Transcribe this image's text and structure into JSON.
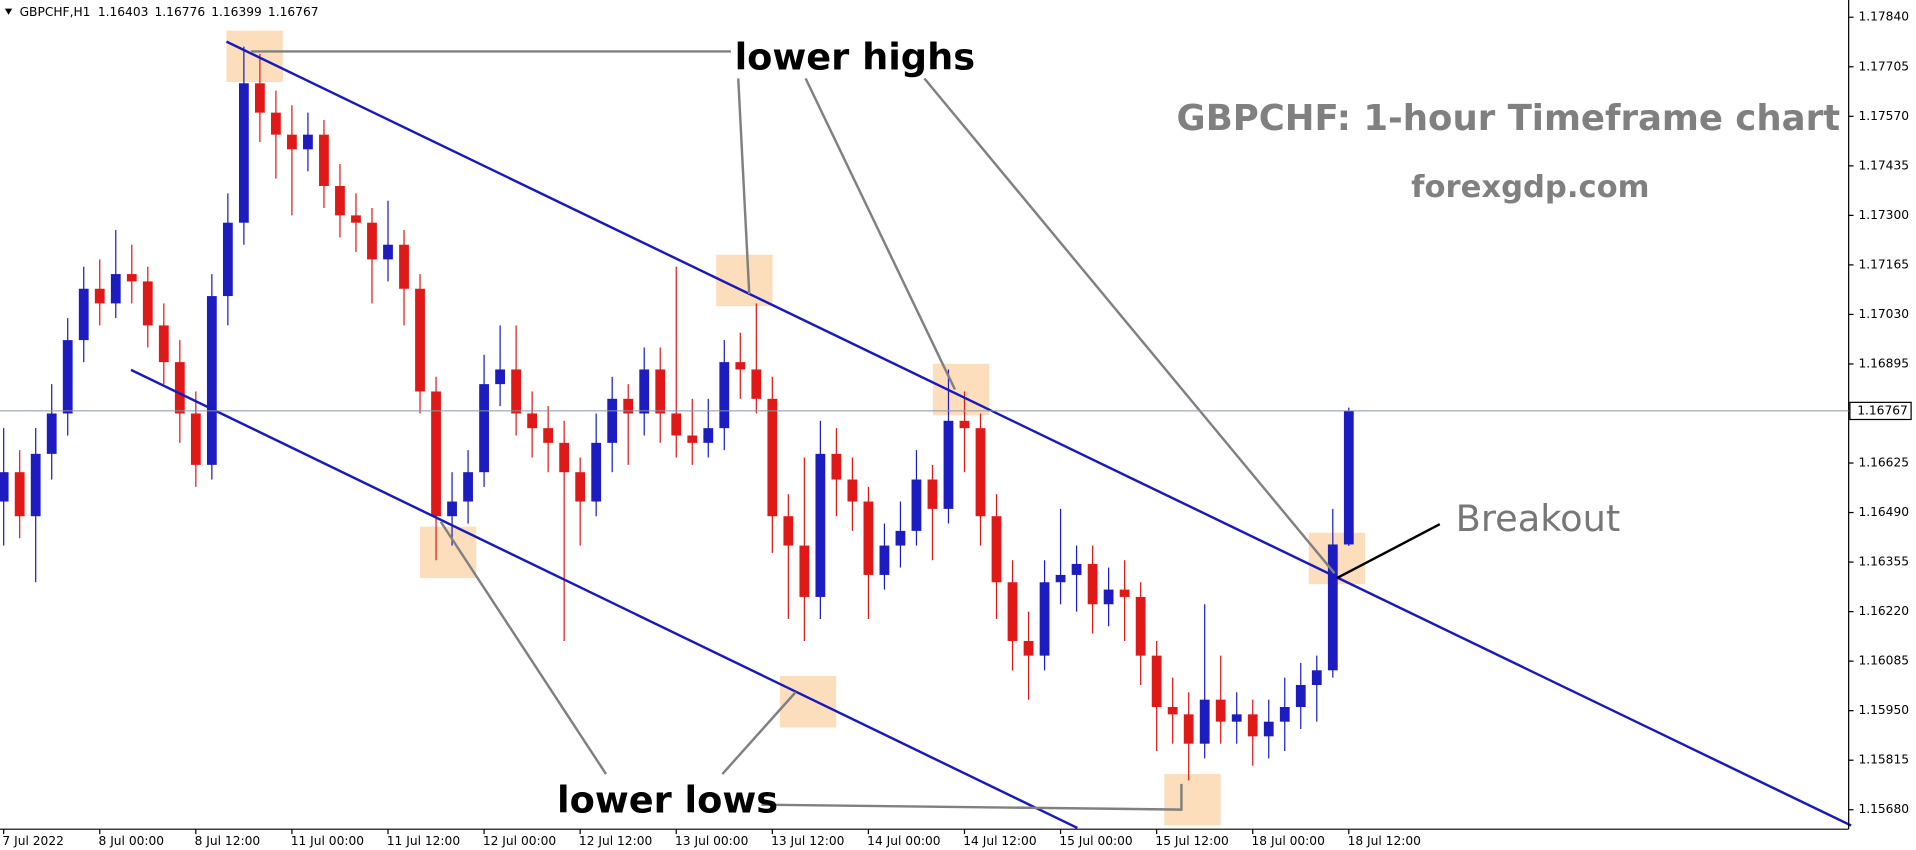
{
  "chart_data": {
    "type": "candlestick",
    "header": {
      "symbol": "GBPCHF,H1",
      "ohlc": [
        "1.16403",
        "1.16776",
        "1.16399",
        "1.16767"
      ]
    },
    "title": "GBPCHF: 1-hour Timeframe chart",
    "subtitle": "forexgdp.com",
    "annotations": {
      "highs": "lower highs",
      "lows": "lower lows",
      "breakout": "Breakout"
    },
    "bull_color": "#1c1cc0",
    "bear_color": "#e01818",
    "ylim": [
      1.15627,
      1.17887
    ],
    "yticks": [
      {
        "value": 1.1784,
        "label": "1.17840"
      },
      {
        "value": 1.17705,
        "label": "1.17705"
      },
      {
        "value": 1.1757,
        "label": "1.17570"
      },
      {
        "value": 1.17435,
        "label": "1.17435"
      },
      {
        "value": 1.173,
        "label": "1.17300"
      },
      {
        "value": 1.17165,
        "label": "1.17165"
      },
      {
        "value": 1.1703,
        "label": "1.17030"
      },
      {
        "value": 1.16895,
        "label": "1.16895"
      },
      {
        "value": 1.16625,
        "label": "1.16625"
      },
      {
        "value": 1.1649,
        "label": "1.16490"
      },
      {
        "value": 1.16355,
        "label": "1.16355"
      },
      {
        "value": 1.1622,
        "label": "1.16220"
      },
      {
        "value": 1.16085,
        "label": "1.16085"
      },
      {
        "value": 1.1595,
        "label": "1.15950"
      },
      {
        "value": 1.15815,
        "label": "1.15815"
      },
      {
        "value": 1.1568,
        "label": "1.15680"
      }
    ],
    "current_price": {
      "value": 1.16767,
      "label": "1.16767"
    },
    "categories": [
      "7 Jul 2022",
      null,
      null,
      null,
      null,
      null,
      "8 Jul 00:00",
      null,
      null,
      null,
      null,
      null,
      "8 Jul 12:00",
      null,
      null,
      null,
      null,
      null,
      "11 Jul 00:00",
      null,
      null,
      null,
      null,
      null,
      "11 Jul 12:00",
      null,
      null,
      null,
      null,
      null,
      "12 Jul 00:00",
      null,
      null,
      null,
      null,
      null,
      "12 Jul 12:00",
      null,
      null,
      null,
      null,
      null,
      "13 Jul 00:00",
      null,
      null,
      null,
      null,
      null,
      "13 Jul 12:00",
      null,
      null,
      null,
      null,
      null,
      "14 Jul 00:00",
      null,
      null,
      null,
      null,
      null,
      "14 Jul 12:00",
      null,
      null,
      null,
      null,
      null,
      "15 Jul 00:00",
      null,
      null,
      null,
      null,
      null,
      "15 Jul 12:00",
      null,
      null,
      null,
      null,
      null,
      "18 Jul 00:00",
      null,
      null,
      null,
      null,
      null,
      "18 Jul 12:00"
    ],
    "candles": [
      [
        1.1652,
        1.1672,
        1.164,
        1.166
      ],
      [
        1.166,
        1.1666,
        1.1642,
        1.1648
      ],
      [
        1.1648,
        1.1672,
        1.163,
        1.1665
      ],
      [
        1.1665,
        1.1684,
        1.1658,
        1.1676
      ],
      [
        1.1676,
        1.1702,
        1.167,
        1.1696
      ],
      [
        1.1696,
        1.1716,
        1.169,
        1.171
      ],
      [
        1.171,
        1.1718,
        1.17,
        1.1706
      ],
      [
        1.1706,
        1.1726,
        1.1702,
        1.1714
      ],
      [
        1.1714,
        1.1722,
        1.1706,
        1.1712
      ],
      [
        1.1712,
        1.1716,
        1.1694,
        1.17
      ],
      [
        1.17,
        1.1706,
        1.1684,
        1.169
      ],
      [
        1.169,
        1.1696,
        1.1668,
        1.1676
      ],
      [
        1.1676,
        1.1682,
        1.1656,
        1.1662
      ],
      [
        1.1662,
        1.1714,
        1.1658,
        1.1708
      ],
      [
        1.1708,
        1.1736,
        1.17,
        1.1728
      ],
      [
        1.1728,
        1.1776,
        1.1722,
        1.1766
      ],
      [
        1.1766,
        1.1774,
        1.175,
        1.1758
      ],
      [
        1.1758,
        1.1764,
        1.174,
        1.1752
      ],
      [
        1.1752,
        1.176,
        1.173,
        1.1748
      ],
      [
        1.1748,
        1.1758,
        1.1742,
        1.1752
      ],
      [
        1.1752,
        1.1756,
        1.1732,
        1.1738
      ],
      [
        1.1738,
        1.1744,
        1.1724,
        1.173
      ],
      [
        1.173,
        1.1736,
        1.172,
        1.1728
      ],
      [
        1.1728,
        1.1732,
        1.1706,
        1.1718
      ],
      [
        1.1718,
        1.1734,
        1.1712,
        1.1722
      ],
      [
        1.1722,
        1.1726,
        1.17,
        1.171
      ],
      [
        1.171,
        1.1714,
        1.1676,
        1.1682
      ],
      [
        1.1682,
        1.1686,
        1.1636,
        1.1648
      ],
      [
        1.1648,
        1.166,
        1.164,
        1.1652
      ],
      [
        1.1652,
        1.1666,
        1.1646,
        1.166
      ],
      [
        1.166,
        1.1692,
        1.1656,
        1.1684
      ],
      [
        1.1684,
        1.17,
        1.1678,
        1.1688
      ],
      [
        1.1688,
        1.17,
        1.167,
        1.1676
      ],
      [
        1.1676,
        1.1682,
        1.1664,
        1.1672
      ],
      [
        1.1672,
        1.1678,
        1.166,
        1.1668
      ],
      [
        1.1668,
        1.1674,
        1.1614,
        1.166
      ],
      [
        1.166,
        1.1664,
        1.164,
        1.1652
      ],
      [
        1.1652,
        1.1676,
        1.1648,
        1.1668
      ],
      [
        1.1668,
        1.1686,
        1.166,
        1.168
      ],
      [
        1.168,
        1.1684,
        1.1662,
        1.1676
      ],
      [
        1.1676,
        1.1694,
        1.167,
        1.1688
      ],
      [
        1.1688,
        1.1694,
        1.1668,
        1.1676
      ],
      [
        1.1676,
        1.1716,
        1.1664,
        1.167
      ],
      [
        1.167,
        1.168,
        1.1662,
        1.1668
      ],
      [
        1.1668,
        1.168,
        1.1664,
        1.1672
      ],
      [
        1.1672,
        1.1696,
        1.1666,
        1.169
      ],
      [
        1.169,
        1.1698,
        1.168,
        1.1688
      ],
      [
        1.1688,
        1.1706,
        1.1676,
        1.168
      ],
      [
        1.168,
        1.1686,
        1.1638,
        1.1648
      ],
      [
        1.1648,
        1.1654,
        1.162,
        1.164
      ],
      [
        1.164,
        1.1664,
        1.1614,
        1.1626
      ],
      [
        1.1626,
        1.1674,
        1.162,
        1.1665
      ],
      [
        1.1665,
        1.1672,
        1.1648,
        1.1658
      ],
      [
        1.1658,
        1.1664,
        1.1644,
        1.1652
      ],
      [
        1.1652,
        1.1656,
        1.162,
        1.1632
      ],
      [
        1.1632,
        1.1646,
        1.1628,
        1.164
      ],
      [
        1.164,
        1.1652,
        1.1634,
        1.1644
      ],
      [
        1.1644,
        1.1666,
        1.164,
        1.1658
      ],
      [
        1.1658,
        1.1662,
        1.1636,
        1.165
      ],
      [
        1.165,
        1.1688,
        1.1646,
        1.1674
      ],
      [
        1.1674,
        1.1682,
        1.166,
        1.1672
      ],
      [
        1.1672,
        1.1676,
        1.164,
        1.1648
      ],
      [
        1.1648,
        1.1654,
        1.162,
        1.163
      ],
      [
        1.163,
        1.1636,
        1.1606,
        1.1614
      ],
      [
        1.1614,
        1.1622,
        1.1598,
        1.161
      ],
      [
        1.161,
        1.1636,
        1.1606,
        1.163
      ],
      [
        1.163,
        1.165,
        1.1624,
        1.1632
      ],
      [
        1.1632,
        1.164,
        1.1622,
        1.1635
      ],
      [
        1.1635,
        1.164,
        1.1616,
        1.1624
      ],
      [
        1.1624,
        1.1634,
        1.1618,
        1.1628
      ],
      [
        1.1628,
        1.1636,
        1.1614,
        1.1626
      ],
      [
        1.1626,
        1.163,
        1.1602,
        1.161
      ],
      [
        1.161,
        1.1614,
        1.1584,
        1.1596
      ],
      [
        1.1596,
        1.1604,
        1.1586,
        1.1594
      ],
      [
        1.1594,
        1.16,
        1.1576,
        1.1586
      ],
      [
        1.1586,
        1.1624,
        1.1582,
        1.1598
      ],
      [
        1.1598,
        1.161,
        1.1586,
        1.1592
      ],
      [
        1.1592,
        1.16,
        1.1586,
        1.1594
      ],
      [
        1.1594,
        1.1598,
        1.158,
        1.1588
      ],
      [
        1.1588,
        1.1598,
        1.1582,
        1.1592
      ],
      [
        1.1592,
        1.1604,
        1.1584,
        1.1596
      ],
      [
        1.1596,
        1.1608,
        1.159,
        1.1602
      ],
      [
        1.1602,
        1.161,
        1.1592,
        1.1606
      ],
      [
        1.1606,
        1.165,
        1.1604,
        1.16403
      ],
      [
        1.16403,
        1.16776,
        1.16399,
        1.16767
      ]
    ]
  }
}
